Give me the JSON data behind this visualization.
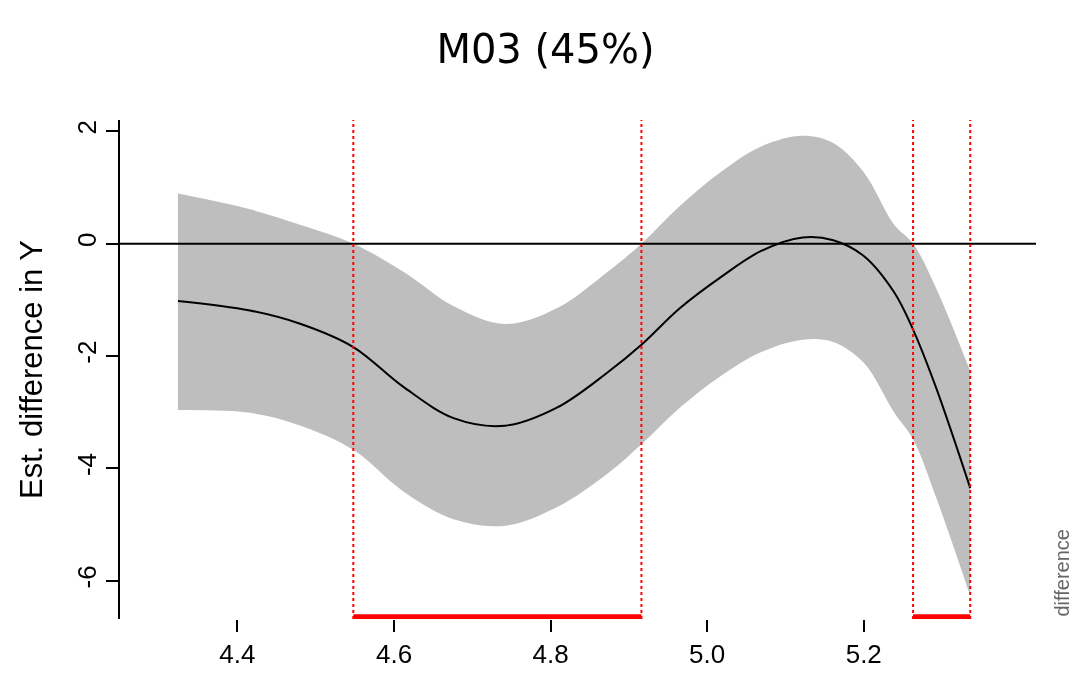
{
  "chart_data": {
    "type": "line",
    "title": "M03 (45%)",
    "ylabel": "Est. difference in Y",
    "x": [
      4.324,
      4.416,
      4.481,
      4.548,
      4.612,
      4.677,
      4.742,
      4.808,
      4.873,
      4.916,
      4.965,
      5.017,
      5.069,
      5.122,
      5.161,
      5.2,
      5.239,
      5.263,
      5.292,
      5.336
    ],
    "series": [
      {
        "color": "#000000",
        "values": [
          -1.02,
          -1.19,
          -1.43,
          -1.84,
          -2.55,
          -3.11,
          -3.24,
          -2.92,
          -2.29,
          -1.8,
          -1.15,
          -0.6,
          -0.13,
          0.11,
          0.06,
          -0.22,
          -0.87,
          -1.53,
          -2.55,
          -4.35
        ],
        "upper": [
          0.89,
          0.61,
          0.33,
          0,
          -0.5,
          -1.12,
          -1.43,
          -1.15,
          -0.5,
          0,
          0.67,
          1.27,
          1.73,
          1.92,
          1.79,
          1.27,
          0.33,
          0,
          -0.78,
          -2.27
        ],
        "lower": [
          -2.96,
          -3.01,
          -3.24,
          -3.67,
          -4.41,
          -4.91,
          -5.02,
          -4.69,
          -4.09,
          -3.57,
          -2.92,
          -2.36,
          -1.93,
          -1.71,
          -1.75,
          -2.12,
          -3.01,
          -3.48,
          -4.5,
          -6.27
        ]
      },
      {
        "color": "#ff0000",
        "x": [
          4.548,
          4.916
        ],
        "values": [
          -6.64,
          -6.64
        ]
      },
      {
        "color": "#ff0000",
        "x": [
          5.263,
          5.336
        ],
        "values": [
          -6.64,
          -6.64
        ]
      }
    ],
    "xlim": [
      4.25,
      5.42
    ],
    "ylim": [
      -6.68,
      2.2
    ],
    "xticks": [
      4.4,
      4.6,
      4.8,
      {
        "value": 5,
        "label": "5.0"
      },
      5.2
    ],
    "yticks": [
      -6,
      -4,
      -2,
      0,
      2
    ],
    "ref_lines": [
      {
        "axis": "y",
        "value": 0,
        "color": "#000000",
        "line_style": "solid"
      },
      {
        "axis": "x",
        "value": 4.548,
        "color": "#ff0000",
        "line_style": "dotted"
      },
      {
        "axis": "x",
        "value": 4.916,
        "color": "#ff0000",
        "line_style": "dotted"
      },
      {
        "axis": "x",
        "value": 5.263,
        "color": "#ff0000",
        "line_style": "dotted"
      },
      {
        "axis": "x",
        "value": 5.336,
        "color": "#ff0000",
        "line_style": "dotted"
      }
    ],
    "annotations": [
      "difference"
    ]
  }
}
